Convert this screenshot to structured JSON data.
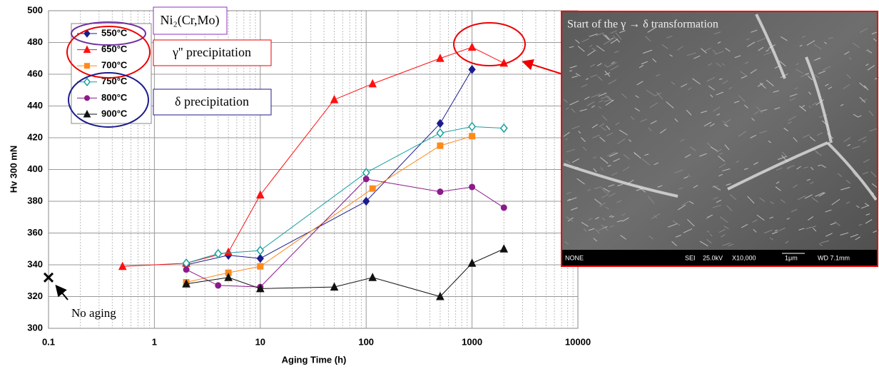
{
  "chart_data": {
    "type": "line",
    "x_label": "Aging Time (h)",
    "y_label": "Hv 300 mN",
    "xscale": "log",
    "xlim": [
      0.1,
      10000
    ],
    "xticks": [
      0.1,
      1,
      10,
      100,
      1000,
      10000
    ],
    "ylim": [
      300,
      500
    ],
    "yticks": [
      300,
      320,
      340,
      360,
      380,
      400,
      420,
      440,
      460,
      480,
      500
    ],
    "grid": true,
    "series": [
      {
        "name": "550°C",
        "color": "#1c1c8c",
        "marker": "diamond",
        "x": [
          2,
          5,
          10,
          100,
          500,
          1000
        ],
        "values": [
          340,
          346,
          344,
          380,
          429,
          463
        ]
      },
      {
        "name": "650°C",
        "color": "#ff1010",
        "marker": "triangle",
        "x": [
          0.5,
          2,
          5,
          10,
          50,
          115,
          500,
          1000,
          2000
        ],
        "values": [
          339,
          341,
          348,
          384,
          444,
          454,
          470,
          477,
          467
        ]
      },
      {
        "name": "700°C",
        "color": "#ff8a1a",
        "marker": "square",
        "x": [
          2,
          5,
          10,
          115,
          500,
          1000
        ],
        "values": [
          329,
          335,
          339,
          388,
          415,
          421
        ]
      },
      {
        "name": "750°C",
        "color": "#1a9e9e",
        "marker": "open-diamond",
        "x": [
          2,
          4,
          10,
          100,
          500,
          1000,
          2000
        ],
        "values": [
          341,
          347,
          349,
          398,
          423,
          427,
          426
        ]
      },
      {
        "name": "800°C",
        "color": "#8b1a8b",
        "marker": "circle",
        "x": [
          2,
          4,
          10,
          100,
          500,
          1000,
          2000
        ],
        "values": [
          337,
          327,
          326,
          394,
          386,
          389,
          376
        ]
      },
      {
        "name": "900°C",
        "color": "#111111",
        "marker": "triangle",
        "x": [
          2,
          5,
          10,
          50,
          115,
          500,
          1000,
          2000
        ],
        "values": [
          328,
          332,
          325,
          326,
          332,
          320,
          341,
          350
        ]
      }
    ],
    "no_aging": {
      "label": "No aging",
      "x": 0.1,
      "y": 332
    },
    "annotations": [
      "Ni₂(Cr,Mo)",
      "γ'' precipitation",
      "δ precipitation"
    ]
  },
  "micrograph": {
    "caption": "Start of the γ → δ transformation",
    "info": [
      "NONE",
      "SEI",
      "25.0kV",
      "X10,000",
      "1μm",
      "WD 7.1mm"
    ]
  }
}
